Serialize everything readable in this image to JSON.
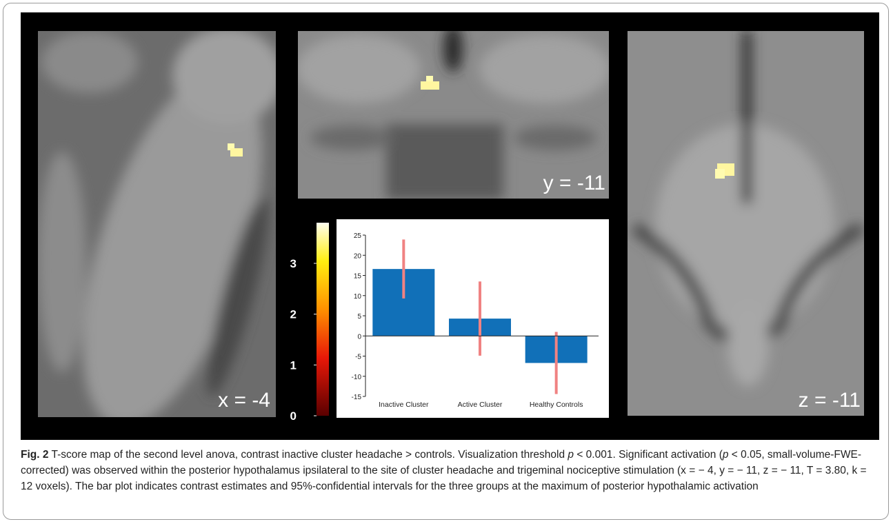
{
  "figure": {
    "panels": [
      {
        "label": "x = -4"
      },
      {
        "label": "y = -11"
      },
      {
        "label": "z = -11"
      }
    ],
    "colorbar": {
      "lim": [
        0,
        3.8
      ],
      "ticks": [
        0,
        1,
        2,
        3
      ]
    }
  },
  "chart_data": {
    "type": "bar",
    "categories": [
      "Inactive Cluster",
      "Active Cluster",
      "Healthy Controls"
    ],
    "values": [
      16.6,
      4.3,
      -6.7
    ],
    "errors": [
      7.3,
      9.2,
      7.7
    ],
    "color": "#1170b8",
    "error_color": "#f08282",
    "ylim": [
      -15,
      25
    ],
    "yticks": [
      -15,
      -10,
      -5,
      0,
      5,
      10,
      15,
      20,
      25
    ]
  },
  "caption": {
    "label": "Fig. 2",
    "parts": [
      {
        "text": " T-score map of the second level anova, contrast inactive cluster headache > controls. Visualization threshold "
      },
      {
        "text": "p",
        "italic": true
      },
      {
        "text": " < 0.001. Significant activation ("
      },
      {
        "text": "p",
        "italic": true
      },
      {
        "text": " < 0.05, small-volume-FWE-corrected) was observed within the posterior hypothalamus ipsilateral to the site of cluster headache and trigeminal nociceptive stimulation (x = − 4, y = − 11, z = − 11, T = 3.80, k = 12 voxels). The bar plot indicates contrast estimates and 95%-confidential intervals for the three groups at the maximum of posterior hypothalamic activation"
      }
    ]
  }
}
